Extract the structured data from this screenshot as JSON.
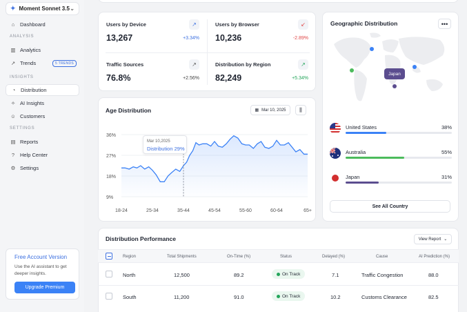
{
  "model": {
    "name": "Moment Sonnet 3.5"
  },
  "sidebar": {
    "items": [
      {
        "label": "Dashboard",
        "icon": "home-icon"
      },
      {
        "label": "Analytics",
        "icon": "bar-chart-icon"
      },
      {
        "label": "Trends",
        "icon": "trend-icon",
        "badge": "5 TRENDS"
      },
      {
        "label": "Distribution",
        "icon": "pie-chart-icon"
      },
      {
        "label": "AI Insights",
        "icon": "sparkle-icon"
      },
      {
        "label": "Customers",
        "icon": "user-icon"
      },
      {
        "label": "Reports",
        "icon": "document-icon"
      },
      {
        "label": "Help Center",
        "icon": "help-icon"
      },
      {
        "label": "Settings",
        "icon": "gear-icon"
      }
    ],
    "sections": [
      "ANALYSIS",
      "INSIGHTS",
      "SETTINGS"
    ],
    "upgrade": {
      "title": "Free Account Version",
      "description": "Use the AI assistant to get deeper insights.",
      "button": "Upgrade Premium"
    }
  },
  "stats": [
    {
      "label": "Users by Device",
      "value": "13,267",
      "change": "+3.34%",
      "trend": "up"
    },
    {
      "label": "Users by Browser",
      "value": "10,236",
      "change": "-2.89%",
      "trend": "down"
    },
    {
      "label": "Traffic Sources",
      "value": "76.8%",
      "change": "+2.56%",
      "trend": "neutral"
    },
    {
      "label": "Distribution by Region",
      "value": "82,249",
      "change": "+5.34%",
      "trend": "up"
    }
  ],
  "age_chart": {
    "title": "Age Distribution",
    "date": "Mar 10, 2025",
    "tooltip": {
      "date": "Mar 10,2025",
      "text": "Distribution 29%"
    }
  },
  "chart_data": {
    "type": "area",
    "title": "Age Distribution",
    "categories": [
      "18-24",
      "25-34",
      "35-44",
      "45-54",
      "55-60",
      "60-64",
      "65+"
    ],
    "yticks": [
      "36%",
      "27%",
      "18%",
      "9%"
    ],
    "ylim": [
      9,
      36
    ],
    "x": [
      0,
      0.12,
      0.25,
      0.38,
      0.5,
      0.62,
      0.75,
      0.88,
      1.0,
      1.12,
      1.25,
      1.38,
      1.5,
      1.62,
      1.75,
      1.88,
      2.0,
      2.1,
      2.2,
      2.3,
      2.4,
      2.5,
      2.62,
      2.75,
      2.88,
      3.0,
      3.12,
      3.25,
      3.38,
      3.5,
      3.62,
      3.75,
      3.88,
      4.0,
      4.12,
      4.25,
      4.38,
      4.5,
      4.62,
      4.75,
      4.88,
      5.0,
      5.12,
      5.25,
      5.38,
      5.5,
      5.62,
      5.75,
      5.88,
      6.0
    ],
    "values": [
      21.5,
      21.5,
      21,
      22,
      21.5,
      22.5,
      21,
      22,
      20.5,
      18.5,
      15.5,
      15.5,
      18,
      19.5,
      21,
      20,
      22.5,
      24,
      27,
      29,
      32.5,
      31.5,
      32,
      32,
      31,
      33,
      31,
      30.5,
      32,
      34,
      35.5,
      34.5,
      32,
      31.5,
      31.5,
      30,
      32,
      33,
      30.5,
      30,
      31,
      33.5,
      31.5,
      31.5,
      32.5,
      30.5,
      28.5,
      29.5,
      27.5,
      27.5
    ],
    "highlight": {
      "category": "35-44",
      "value": 29
    },
    "grid": true
  },
  "geo": {
    "title": "Geographic Distribution",
    "map_tooltip": "Japan",
    "countries": [
      {
        "name": "United States",
        "percent": "38%",
        "value": 38,
        "color": "#3b82f6",
        "flag": "us-flag-icon"
      },
      {
        "name": "Australia",
        "percent": "55%",
        "value": 55,
        "color": "#4cbb5c",
        "flag": "au-flag-icon"
      },
      {
        "name": "Japan",
        "percent": "31%",
        "value": 31,
        "color": "#5b4d8f",
        "flag": "jp-flag-icon"
      }
    ],
    "see_all": "See All Country"
  },
  "table": {
    "title": "Distribution Performance",
    "view_report": "View Report",
    "columns": [
      "Region",
      "Total Shipments",
      "On-Time (%)",
      "Status",
      "Delayed (%)",
      "Cause",
      "AI Prediction (%)"
    ],
    "rows": [
      {
        "region": "North",
        "shipments": "12,500",
        "ontime": "89.2",
        "status": "On Track",
        "delayed": "7.1",
        "cause": "Traffic Congestion",
        "prediction": "88.0"
      },
      {
        "region": "South",
        "shipments": "11,200",
        "ontime": "91.0",
        "status": "On Track",
        "delayed": "10.2",
        "cause": "Customs Clearance",
        "prediction": "82.5"
      }
    ]
  }
}
